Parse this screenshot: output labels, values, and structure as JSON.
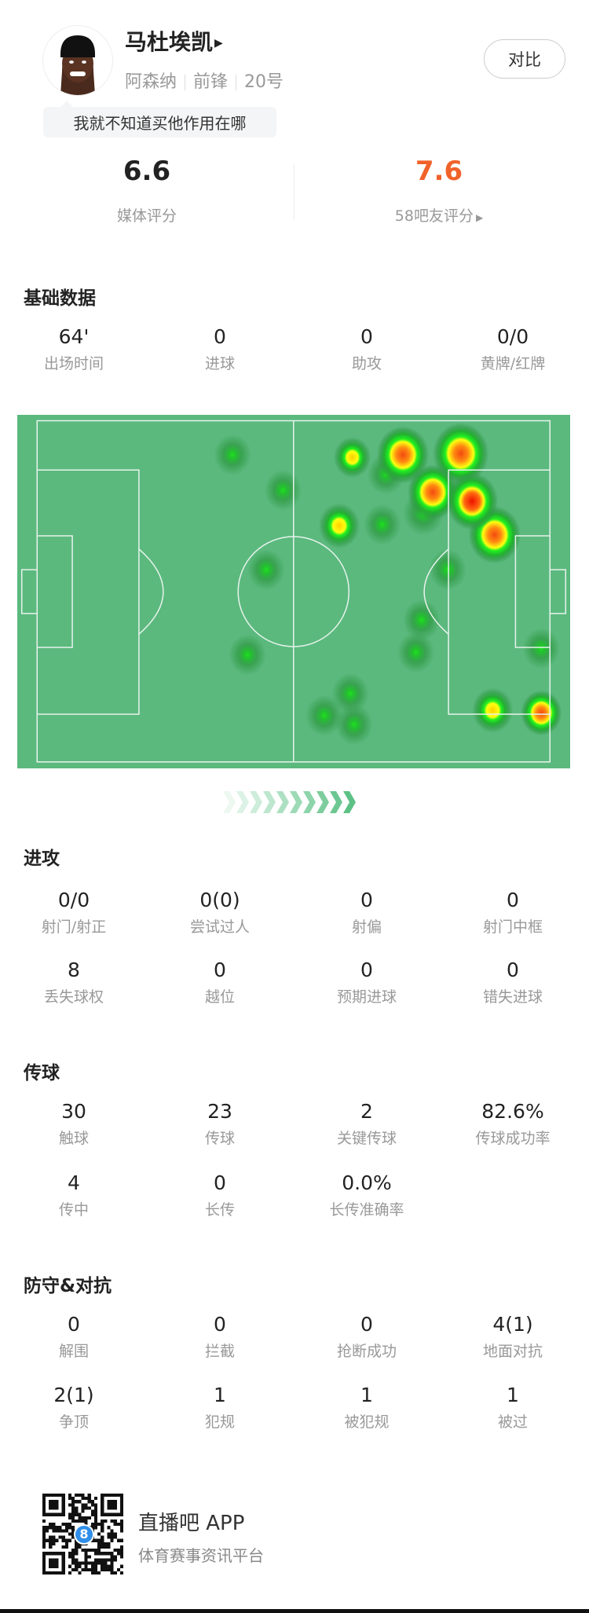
{
  "player": {
    "name": "马杜埃凯",
    "team": "阿森纳",
    "position": "前锋",
    "number": "20号",
    "comment": "我就不知道买他作用在哪",
    "compare_label": "对比"
  },
  "ratings": {
    "media": {
      "value": "6.6",
      "label": "媒体评分"
    },
    "fans": {
      "value": "7.6",
      "label": "58吧友评分",
      "color": "#f0622a"
    }
  },
  "sections": [
    {
      "title": "基础数据",
      "rows": [
        [
          {
            "v": "64'",
            "l": "出场时间"
          },
          {
            "v": "0",
            "l": "进球"
          },
          {
            "v": "0",
            "l": "助攻"
          },
          {
            "v": "0/0",
            "l": "黄牌/红牌"
          }
        ]
      ]
    },
    {
      "title": "进攻",
      "rows": [
        [
          {
            "v": "0/0",
            "l": "射门/射正"
          },
          {
            "v": "0(0)",
            "l": "尝试过人"
          },
          {
            "v": "0",
            "l": "射偏"
          },
          {
            "v": "0",
            "l": "射门中框"
          }
        ],
        [
          {
            "v": "8",
            "l": "丢失球权"
          },
          {
            "v": "0",
            "l": "越位"
          },
          {
            "v": "0",
            "l": "预期进球"
          },
          {
            "v": "0",
            "l": "错失进球"
          }
        ]
      ]
    },
    {
      "title": "传球",
      "rows": [
        [
          {
            "v": "30",
            "l": "触球"
          },
          {
            "v": "23",
            "l": "传球"
          },
          {
            "v": "2",
            "l": "关键传球"
          },
          {
            "v": "82.6%",
            "l": "传球成功率"
          }
        ],
        [
          {
            "v": "4",
            "l": "传中"
          },
          {
            "v": "0",
            "l": "长传"
          },
          {
            "v": "0.0%",
            "l": "长传准确率"
          }
        ]
      ]
    },
    {
      "title": "防守&对抗",
      "rows": [
        [
          {
            "v": "0",
            "l": "解围"
          },
          {
            "v": "0",
            "l": "拦截"
          },
          {
            "v": "0",
            "l": "抢断成功"
          },
          {
            "v": "4(1)",
            "l": "地面对抗"
          }
        ],
        [
          {
            "v": "2(1)",
            "l": "争顶"
          },
          {
            "v": "1",
            "l": "犯规"
          },
          {
            "v": "1",
            "l": "被犯规"
          },
          {
            "v": "1",
            "l": "被过"
          }
        ]
      ]
    }
  ],
  "heatmap": {
    "pitch_color": "#5bb97e",
    "line_color": "#e8f3ec",
    "attack_direction": "right"
  },
  "footer": {
    "app_title": "直播吧 APP",
    "app_subtitle": "体育赛事资讯平台",
    "qr_badge": "8",
    "accent": "#2f8fe8"
  }
}
